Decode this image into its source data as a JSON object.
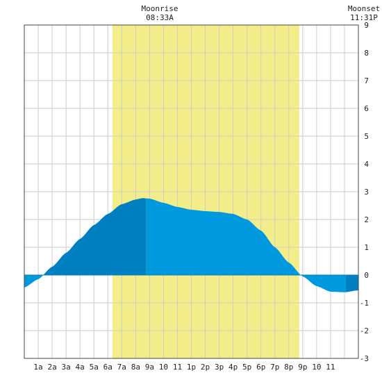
{
  "chart_data": {
    "type": "area",
    "title": "",
    "xlabel": "",
    "ylabel": "",
    "x_tick_labels": [
      "1a",
      "2a",
      "3a",
      "4a",
      "5a",
      "6a",
      "7a",
      "8a",
      "9a",
      "10",
      "11",
      "1p",
      "2p",
      "3p",
      "4p",
      "5p",
      "6p",
      "7p",
      "8p",
      "9p",
      "10",
      "11"
    ],
    "y_ticks": [
      -3,
      -2,
      -1,
      0,
      1,
      2,
      3,
      4,
      5,
      6,
      7,
      8,
      9
    ],
    "xlim_hours": [
      0,
      24
    ],
    "ylim": [
      -3,
      9
    ],
    "grid": true,
    "daylight_hours": [
      6.33,
      19.75
    ],
    "annotations": {
      "moonrise": {
        "label": "Moonrise",
        "time": "08:33A",
        "hour": 8.55
      },
      "moonset": {
        "label": "Moonset",
        "time": "11:31P",
        "hour": 23.52
      }
    },
    "series": [
      {
        "values": [
          [
            0,
            -0.45
          ],
          [
            1,
            -0.15
          ],
          [
            2,
            0.3
          ],
          [
            3,
            0.8
          ],
          [
            4,
            1.3
          ],
          [
            5,
            1.8
          ],
          [
            6,
            2.2
          ],
          [
            7,
            2.55
          ],
          [
            8,
            2.72
          ],
          [
            8.5,
            2.77
          ],
          [
            9,
            2.75
          ],
          [
            10,
            2.6
          ],
          [
            11,
            2.45
          ],
          [
            12,
            2.35
          ],
          [
            13,
            2.3
          ],
          [
            14,
            2.27
          ],
          [
            15,
            2.2
          ],
          [
            16,
            2.0
          ],
          [
            17,
            1.6
          ],
          [
            18,
            1.0
          ],
          [
            19,
            0.45
          ],
          [
            20,
            -0.05
          ],
          [
            21,
            -0.4
          ],
          [
            22,
            -0.6
          ],
          [
            23,
            -0.62
          ],
          [
            24,
            -0.55
          ]
        ]
      }
    ],
    "colors": {
      "daylight": "#f3ee8a",
      "tide_rising": "#0080c0",
      "tide_falling": "#0099dd",
      "grid": "#cccccc",
      "border": "#444444"
    }
  }
}
